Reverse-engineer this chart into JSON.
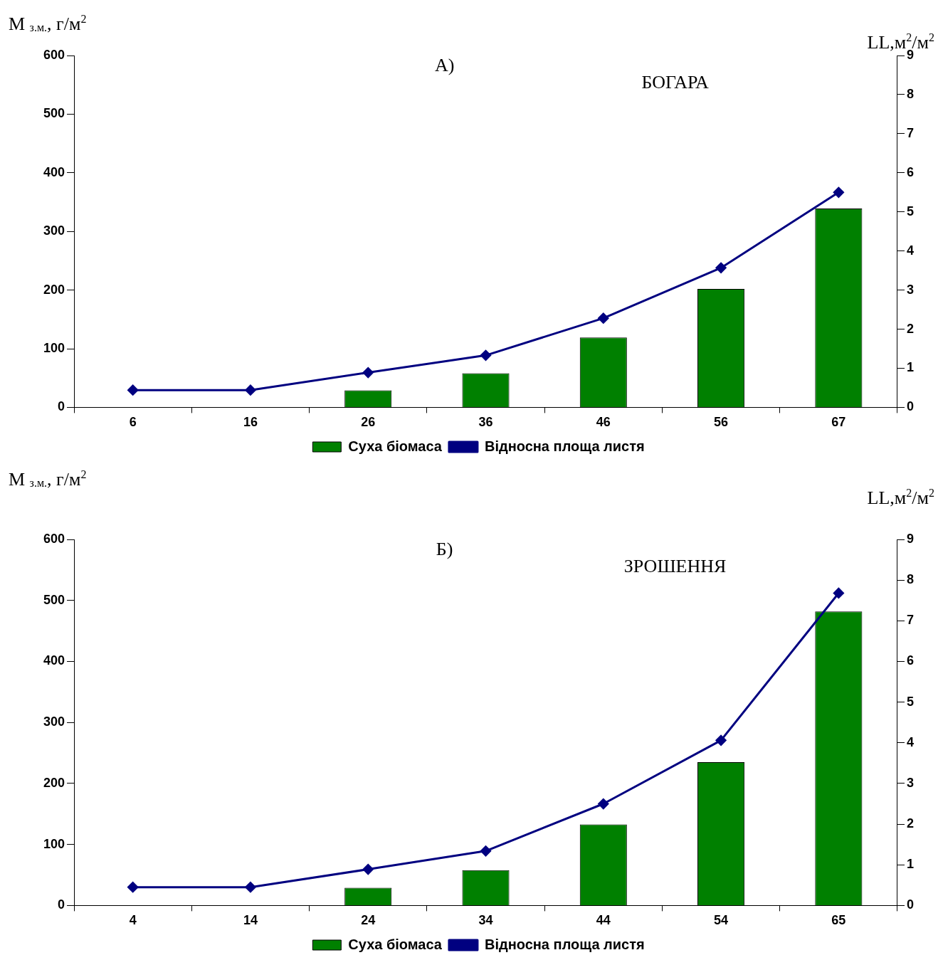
{
  "chart_data": [
    {
      "type": "bar",
      "title": "А)",
      "subtitle": "БОГАРА",
      "ylabel": "M $_{з.м.}$, г/м$^{2}$",
      "y2label": "LL,м$^{2}$/м$^{2}$",
      "categories": [
        "6",
        "16",
        "26",
        "36",
        "46",
        "56",
        "67"
      ],
      "series": [
        {
          "name": "Суха біомаса",
          "color": "#008000",
          "values": [
            null,
            null,
            29,
            58,
            119,
            202,
            339
          ]
        },
        {
          "name": "Відносна площа листя",
          "type": "line",
          "axis": "y2",
          "color": "#000080",
          "marker": "diamond",
          "values": [
            0.44,
            0.44,
            0.89,
            1.33,
            2.28,
            3.57,
            5.5
          ]
        }
      ],
      "ylim": [
        0,
        600
      ],
      "yticks": [
        0,
        100,
        200,
        300,
        400,
        500,
        600
      ],
      "y2lim": [
        0,
        9
      ],
      "y2ticks": [
        0,
        1,
        2,
        3,
        4,
        5,
        6,
        7,
        8,
        9
      ],
      "legend": "bottom"
    },
    {
      "type": "bar",
      "title": "Б)",
      "subtitle": "ЗРОШЕННЯ",
      "ylabel": "M $_{з.м.}$, г/м$^{2}$",
      "y2label": "LL,м$^{2}$/м$^{2}$",
      "categories": [
        "4",
        "14",
        "24",
        "34",
        "44",
        "54",
        "65"
      ],
      "series": [
        {
          "name": "Суха біомаса",
          "color": "#008000",
          "values": [
            null,
            null,
            29,
            58,
            133,
            235,
            482
          ]
        },
        {
          "name": "Відносна площа листя",
          "type": "line",
          "axis": "y2",
          "color": "#000080",
          "marker": "diamond",
          "values": [
            0.45,
            0.45,
            0.89,
            1.34,
            2.5,
            4.06,
            7.68
          ]
        }
      ],
      "ylim": [
        0,
        600
      ],
      "yticks": [
        0,
        100,
        200,
        300,
        400,
        500,
        600
      ],
      "y2lim": [
        0,
        9
      ],
      "y2ticks": [
        0,
        1,
        2,
        3,
        4,
        5,
        6,
        7,
        8,
        9
      ],
      "legend": "bottom"
    }
  ]
}
